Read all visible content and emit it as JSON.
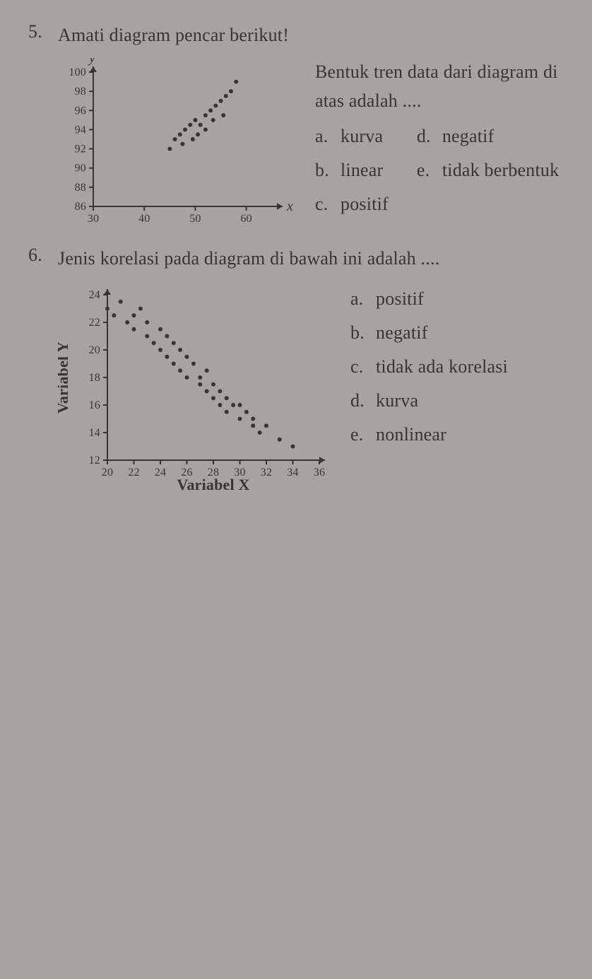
{
  "q5": {
    "number": "5.",
    "stem": "Amati diagram pencar berikut!",
    "question_lead": "Bentuk tren data dari diagram di atas adalah ....",
    "options": [
      {
        "letter": "a.",
        "text": "kurva"
      },
      {
        "letter": "b.",
        "text": "linear"
      },
      {
        "letter": "c.",
        "text": "positif"
      },
      {
        "letter": "d.",
        "text": "negatif"
      },
      {
        "letter": "e.",
        "text": "tidak berbentuk"
      }
    ],
    "chart": {
      "type": "scatter",
      "x_axis": {
        "ticks": [
          30,
          40,
          50,
          60
        ],
        "min": 30,
        "max": 66,
        "label": "x"
      },
      "y_axis": {
        "ticks": [
          86,
          88,
          90,
          92,
          94,
          96,
          98,
          100
        ],
        "min": 86,
        "max": 100,
        "label": "y"
      },
      "points": [
        [
          45,
          92
        ],
        [
          46,
          93
        ],
        [
          47,
          93.5
        ],
        [
          47.5,
          92.5
        ],
        [
          48,
          94
        ],
        [
          49,
          94.5
        ],
        [
          49.5,
          93
        ],
        [
          50,
          95
        ],
        [
          50.5,
          93.5
        ],
        [
          51,
          94.5
        ],
        [
          52,
          95.5
        ],
        [
          52,
          94
        ],
        [
          53,
          96
        ],
        [
          53.5,
          95
        ],
        [
          54,
          96.5
        ],
        [
          55,
          97
        ],
        [
          55.5,
          95.5
        ],
        [
          56,
          97.5
        ],
        [
          57,
          98
        ],
        [
          58,
          99
        ]
      ],
      "point_color": "#3a352f",
      "point_radius": 3,
      "axis_color": "#3a352f",
      "bg": "#a8a2a0",
      "tick_fontsize": 16
    }
  },
  "q6": {
    "number": "6.",
    "stem": "Jenis korelasi pada diagram di bawah ini adalah ....",
    "options": [
      {
        "letter": "a.",
        "text": "positif"
      },
      {
        "letter": "b.",
        "text": "negatif"
      },
      {
        "letter": "c.",
        "text": "tidak ada korelasi"
      },
      {
        "letter": "d.",
        "text": "kurva"
      },
      {
        "letter": "e.",
        "text": "nonlinear"
      }
    ],
    "chart": {
      "type": "scatter",
      "x_axis": {
        "ticks": [
          20,
          22,
          24,
          26,
          28,
          30,
          32,
          34,
          36
        ],
        "min": 20,
        "max": 36,
        "label": "Variabel X",
        "label_fontsize": 22,
        "label_weight": "bold"
      },
      "y_axis": {
        "ticks": [
          12,
          14,
          16,
          18,
          20,
          22,
          24
        ],
        "min": 12,
        "max": 24,
        "label": "Variabel Y",
        "label_fontsize": 22,
        "label_weight": "bold"
      },
      "points": [
        [
          20,
          23
        ],
        [
          20.5,
          22.5
        ],
        [
          21,
          23.5
        ],
        [
          21.5,
          22
        ],
        [
          22,
          22.5
        ],
        [
          22,
          21.5
        ],
        [
          22.5,
          23
        ],
        [
          23,
          21
        ],
        [
          23,
          22
        ],
        [
          23.5,
          20.5
        ],
        [
          24,
          21.5
        ],
        [
          24,
          20
        ],
        [
          24.5,
          19.5
        ],
        [
          24.5,
          21
        ],
        [
          25,
          20.5
        ],
        [
          25,
          19
        ],
        [
          25.5,
          18.5
        ],
        [
          25.5,
          20
        ],
        [
          26,
          19.5
        ],
        [
          26,
          18
        ],
        [
          26.5,
          19
        ],
        [
          27,
          18
        ],
        [
          27,
          17.5
        ],
        [
          27.5,
          18.5
        ],
        [
          27.5,
          17
        ],
        [
          28,
          17.5
        ],
        [
          28,
          16.5
        ],
        [
          28.5,
          17
        ],
        [
          28.5,
          16
        ],
        [
          29,
          16.5
        ],
        [
          29,
          15.5
        ],
        [
          29.5,
          16
        ],
        [
          30,
          15
        ],
        [
          30,
          16
        ],
        [
          30.5,
          15.5
        ],
        [
          31,
          14.5
        ],
        [
          31,
          15
        ],
        [
          31.5,
          14
        ],
        [
          32,
          14.5
        ],
        [
          33,
          13.5
        ],
        [
          34,
          13
        ]
      ],
      "point_color": "#3a352f",
      "point_radius": 3,
      "axis_color": "#3a352f",
      "bg": "#a8a2a0",
      "tick_fontsize": 16
    }
  }
}
